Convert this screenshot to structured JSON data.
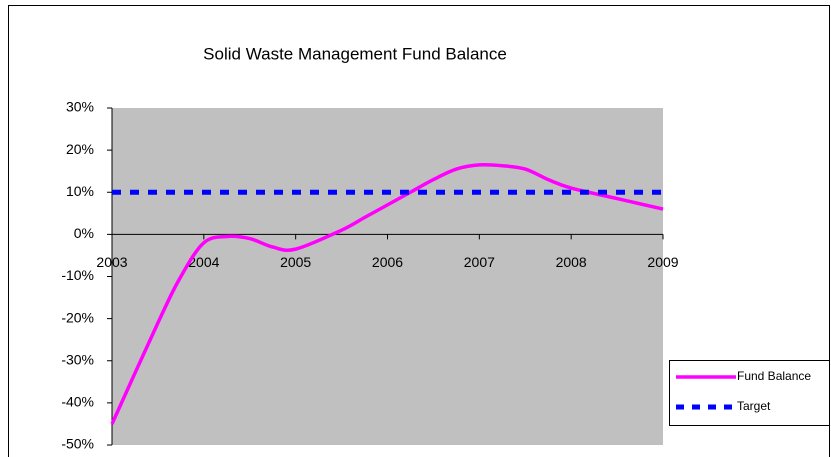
{
  "chart_data": {
    "type": "line",
    "title": "Solid Waste Management Fund Balance",
    "x": [
      2003,
      2003.5,
      2003.75,
      2004,
      2004.25,
      2004.5,
      2004.75,
      2005,
      2005.5,
      2005.75,
      2006,
      2006.25,
      2006.5,
      2006.75,
      2007,
      2007.25,
      2007.5,
      2007.75,
      2008,
      2008.5,
      2009
    ],
    "series": [
      {
        "name": "Fund Balance",
        "color": "#ff00ff",
        "style": "solid",
        "values": [
          -45,
          -21,
          -10,
          -2,
          -0.5,
          -1,
          -3,
          -3.5,
          1,
          4,
          7,
          10,
          13,
          15.5,
          16.5,
          16.3,
          15.5,
          13,
          11,
          8.5,
          6
        ]
      },
      {
        "name": "Target",
        "color": "#0000ff",
        "style": "dotted",
        "values": [
          10,
          10,
          10,
          10,
          10,
          10,
          10,
          10,
          10,
          10,
          10,
          10,
          10,
          10,
          10,
          10,
          10,
          10,
          10,
          10,
          10
        ]
      }
    ],
    "xlim": [
      2003,
      2009
    ],
    "xticks": [
      2003,
      2004,
      2005,
      2006,
      2007,
      2008,
      2009
    ],
    "ylim": [
      -50,
      30
    ],
    "yticks": [
      {
        "value": -50,
        "label": "-50%"
      },
      {
        "value": -40,
        "label": "-40%"
      },
      {
        "value": -30,
        "label": "-30%"
      },
      {
        "value": -20,
        "label": "-20%"
      },
      {
        "value": -10,
        "label": "-10%"
      },
      {
        "value": 0,
        "label": "0%"
      },
      {
        "value": 10,
        "label": "10%"
      },
      {
        "value": 20,
        "label": "20%"
      },
      {
        "value": 30,
        "label": "30%"
      }
    ],
    "plot_background": "#c0c0c0",
    "legend": "right"
  }
}
